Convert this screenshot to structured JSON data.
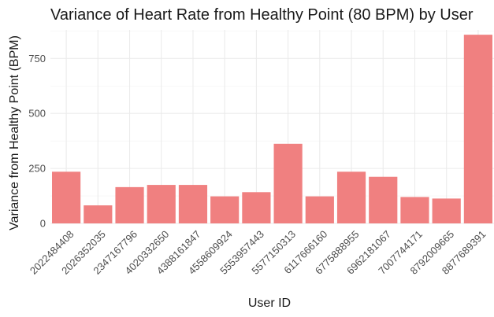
{
  "chart_data": {
    "type": "bar",
    "title": "Variance of Heart Rate from Healthy Point (80 BPM) by User",
    "xlabel": "User ID",
    "ylabel": "Variance from Healthy Point (BPM)",
    "categories": [
      "2022484408",
      "2026352035",
      "2347167796",
      "4020332650",
      "4388161847",
      "4558609924",
      "5553957443",
      "5577150313",
      "6117666160",
      "6775888955",
      "6962181067",
      "7007744171",
      "8792009665",
      "8877689391"
    ],
    "values": [
      235,
      82,
      165,
      175,
      175,
      123,
      142,
      362,
      123,
      235,
      212,
      120,
      113,
      858
    ],
    "yticks": [
      0,
      250,
      500,
      750
    ],
    "ylim": [
      0,
      880
    ],
    "grid": true,
    "bar_color": "#f08080"
  }
}
